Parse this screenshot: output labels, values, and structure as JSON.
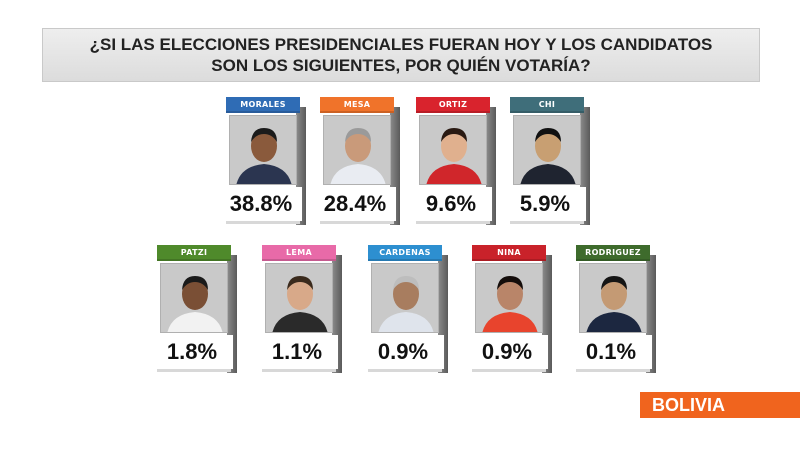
{
  "title": "¿SI LAS ELECCIONES PRESIDENCIALES FUERAN HOY Y LOS CANDIDATOS SON LOS SIGUIENTES, POR QUIÉN VOTARÍA?",
  "country_badge": "BOLIVIA",
  "chart_data": {
    "type": "bar",
    "title": "¿SI LAS ELECCIONES PRESIDENCIALES FUERAN HOY Y LOS CANDIDATOS SON LOS SIGUIENTES, POR QUIÉN VOTARÍA?",
    "categories": [
      "MORALES",
      "MESA",
      "ORTIZ",
      "CHI",
      "PATZI",
      "LEMA",
      "CARDENAS",
      "NINA",
      "RODRIGUEZ"
    ],
    "values": [
      38.8,
      28.4,
      9.6,
      5.9,
      1.8,
      1.1,
      0.9,
      0.9,
      0.1
    ],
    "value_labels": [
      "38.8%",
      "28.4%",
      "9.6%",
      "5.9%",
      "1.8%",
      "1.1%",
      "0.9%",
      "0.9%",
      "0.1%"
    ],
    "tab_colors": [
      "#2f6cb5",
      "#f0732a",
      "#d9232d",
      "#3f6e7a",
      "#4f8a2b",
      "#e86aa8",
      "#2d8fd0",
      "#c9222a",
      "#3e6b2c"
    ]
  }
}
